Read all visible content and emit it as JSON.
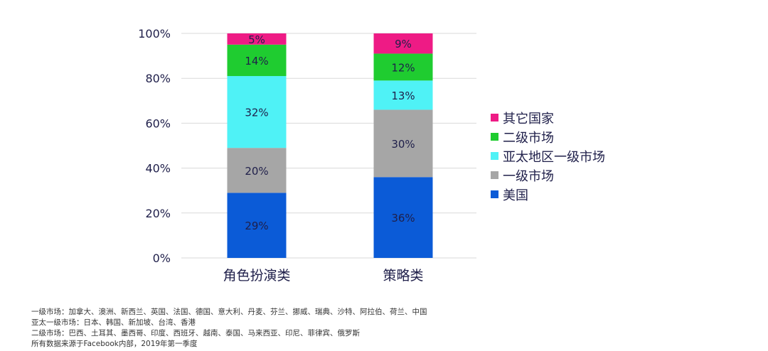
{
  "chart_data": {
    "type": "bar",
    "stacked": true,
    "percent_axis": true,
    "categories": [
      "角色扮演类",
      "策略类"
    ],
    "series": [
      {
        "name": "美国",
        "color": "#0b5bd7",
        "values": [
          29,
          36
        ],
        "labels": [
          "29%",
          "36%"
        ]
      },
      {
        "name": "一级市场",
        "color": "#a6a6a6",
        "values": [
          20,
          30
        ],
        "labels": [
          "20%",
          "30%"
        ]
      },
      {
        "name": "亚太地区一级市场",
        "color": "#4ff2f6",
        "values": [
          32,
          13
        ],
        "labels": [
          "32%",
          "13%"
        ]
      },
      {
        "name": "二级市场",
        "color": "#1fcc30",
        "values": [
          14,
          12
        ],
        "labels": [
          "14%",
          "12%"
        ]
      },
      {
        "name": "其它国家",
        "color": "#ee1b85",
        "values": [
          5,
          9
        ],
        "labels": [
          "5%",
          "9%"
        ]
      }
    ],
    "ylim": [
      0,
      100
    ],
    "yticks": [
      0,
      20,
      40,
      60,
      80,
      100
    ],
    "ytick_labels": [
      "0%",
      "20%",
      "40%",
      "60%",
      "80%",
      "100%"
    ],
    "grid": true,
    "legend_position": "right",
    "legend_order": [
      "其它国家",
      "二级市场",
      "亚太地区一级市场",
      "一级市场",
      "美国"
    ]
  },
  "notes": [
    "一级市场：加拿大、澳洲、新西兰、英国、法国、德国、意大利、丹麦、芬兰、挪威、瑞典、沙特、阿拉伯、荷兰、中国",
    "亚太一级市场：日本、韩国、新加坡、台湾、香港",
    "二级市场：巴西、土耳其、墨西哥、印度、西班牙、越南、泰国、马来西亚、印尼、菲律宾、俄罗斯",
    "所有数据来源于Facebook内部，2019年第一季度"
  ]
}
